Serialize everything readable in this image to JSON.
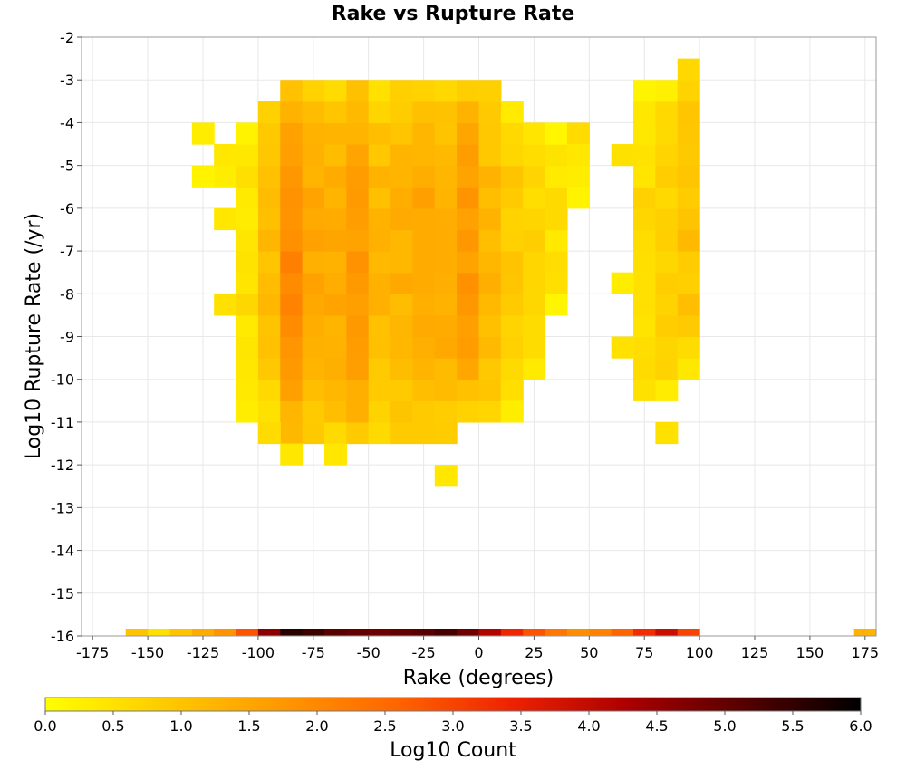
{
  "chart_data": {
    "type": "heatmap",
    "title": "Rake vs Rupture Rate",
    "xlabel": "Rake (degrees)",
    "ylabel": "Log10 Rupture Rate (/yr)",
    "xlim": [
      -180,
      180
    ],
    "ylim": [
      -16,
      -2
    ],
    "xticks": [
      -175,
      -150,
      -125,
      -100,
      -75,
      -50,
      -25,
      0,
      25,
      50,
      75,
      100,
      125,
      150,
      175
    ],
    "yticks": [
      -2,
      -3,
      -4,
      -5,
      -6,
      -7,
      -8,
      -9,
      -10,
      -11,
      -12,
      -13,
      -14,
      -15,
      -16
    ],
    "grid": true,
    "bin_width": 10,
    "bin_height": 0.5,
    "colorbar": {
      "label": "Log10 Count",
      "range": [
        0,
        6
      ],
      "ticks": [
        "0.0",
        "0.5",
        "1.0",
        "1.5",
        "2.0",
        "2.5",
        "3.0",
        "3.5",
        "4.0",
        "4.5",
        "5.0",
        "5.5",
        "6.0"
      ],
      "colors": [
        "#ffff00",
        "#ffcc00",
        "#ff9900",
        "#ff6600",
        "#ee2200",
        "#aa0000",
        "#550000",
        "#000000"
      ]
    },
    "bins": [
      {
        "x": -155,
        "y": -16,
        "v": 1.0
      },
      {
        "x": -145,
        "y": -16,
        "v": 0.5
      },
      {
        "x": -135,
        "y": -16,
        "v": 1.0
      },
      {
        "x": -125,
        "y": -16,
        "v": 1.4
      },
      {
        "x": -115,
        "y": -16,
        "v": 1.8
      },
      {
        "x": -105,
        "y": -16,
        "v": 2.8
      },
      {
        "x": -95,
        "y": -16,
        "v": 4.6
      },
      {
        "x": -85,
        "y": -16,
        "v": 5.6
      },
      {
        "x": -75,
        "y": -16,
        "v": 5.4
      },
      {
        "x": -65,
        "y": -16,
        "v": 5.1
      },
      {
        "x": -55,
        "y": -16,
        "v": 5.0
      },
      {
        "x": -45,
        "y": -16,
        "v": 4.9
      },
      {
        "x": -35,
        "y": -16,
        "v": 5.0
      },
      {
        "x": -25,
        "y": -16,
        "v": 5.1
      },
      {
        "x": -15,
        "y": -16,
        "v": 5.3
      },
      {
        "x": -5,
        "y": -16,
        "v": 4.9
      },
      {
        "x": 5,
        "y": -16,
        "v": 4.2
      },
      {
        "x": 15,
        "y": -16,
        "v": 3.4
      },
      {
        "x": 25,
        "y": -16,
        "v": 2.8
      },
      {
        "x": 35,
        "y": -16,
        "v": 2.3
      },
      {
        "x": 45,
        "y": -16,
        "v": 1.9
      },
      {
        "x": 55,
        "y": -16,
        "v": 2.1
      },
      {
        "x": 65,
        "y": -16,
        "v": 2.6
      },
      {
        "x": 75,
        "y": -16,
        "v": 3.3
      },
      {
        "x": 85,
        "y": -16,
        "v": 3.9
      },
      {
        "x": 95,
        "y": -16,
        "v": 3.0
      },
      {
        "x": 175,
        "y": -16,
        "v": 1.3
      }
    ],
    "regions": [
      {
        "x": [
          -110,
          -100
        ],
        "y": [
          -11,
          -4
        ],
        "base": 0.5
      },
      {
        "x": [
          -100,
          -90
        ],
        "y": [
          -11,
          -3.5
        ],
        "base": 1.1
      },
      {
        "x": [
          -90,
          -80
        ],
        "y": [
          -11.5,
          -3
        ],
        "base": 2.0
      },
      {
        "x": [
          -80,
          -70
        ],
        "y": [
          -11.5,
          -3
        ],
        "base": 1.5
      },
      {
        "x": [
          -70,
          -60
        ],
        "y": [
          -11.5,
          -3
        ],
        "base": 1.4
      },
      {
        "x": [
          -60,
          -50
        ],
        "y": [
          -11.5,
          -3
        ],
        "base": 1.7
      },
      {
        "x": [
          -50,
          -40
        ],
        "y": [
          -11.5,
          -3
        ],
        "base": 1.2
      },
      {
        "x": [
          -40,
          -30
        ],
        "y": [
          -11.5,
          -3
        ],
        "base": 1.3
      },
      {
        "x": [
          -30,
          -20
        ],
        "y": [
          -11.5,
          -3
        ],
        "base": 1.5
      },
      {
        "x": [
          -20,
          -10
        ],
        "y": [
          -11.5,
          -3
        ],
        "base": 1.4
      },
      {
        "x": [
          -10,
          0
        ],
        "y": [
          -11,
          -3
        ],
        "base": 1.7
      },
      {
        "x": [
          0,
          10
        ],
        "y": [
          -11,
          -3
        ],
        "base": 1.2
      },
      {
        "x": [
          10,
          20
        ],
        "y": [
          -10.5,
          -3.5
        ],
        "base": 0.9
      },
      {
        "x": [
          20,
          30
        ],
        "y": [
          -10,
          -4
        ],
        "base": 0.7
      },
      {
        "x": [
          30,
          40
        ],
        "y": [
          -8.5,
          -4
        ],
        "base": 0.5
      },
      {
        "x": [
          70,
          80
        ],
        "y": [
          -10.5,
          -3
        ],
        "base": 0.6
      },
      {
        "x": [
          80,
          90
        ],
        "y": [
          -10.5,
          -3
        ],
        "base": 0.8
      },
      {
        "x": [
          90,
          100
        ],
        "y": [
          -10,
          -2.5
        ],
        "base": 1.0
      }
    ],
    "outliers": [
      {
        "x": -125,
        "y": -4.5,
        "v": 0.3
      },
      {
        "x": -115,
        "y": -5,
        "v": 0.4
      },
      {
        "x": -115,
        "y": -5.5,
        "v": 0.3
      },
      {
        "x": -125,
        "y": -5.5,
        "v": 0.2
      },
      {
        "x": -115,
        "y": -6.5,
        "v": 0.4
      },
      {
        "x": -115,
        "y": -8.5,
        "v": 0.5
      },
      {
        "x": 65,
        "y": -5,
        "v": 0.5
      },
      {
        "x": 65,
        "y": -8,
        "v": 0.3
      },
      {
        "x": 65,
        "y": -9.5,
        "v": 0.5
      },
      {
        "x": -15,
        "y": -12.5,
        "v": 0.4
      },
      {
        "x": -85,
        "y": -12,
        "v": 0.4
      },
      {
        "x": -65,
        "y": -12,
        "v": 0.4
      },
      {
        "x": 85,
        "y": -11.5,
        "v": 0.5
      },
      {
        "x": 45,
        "y": -4.5,
        "v": 0.6
      },
      {
        "x": 45,
        "y": -5,
        "v": 0.4
      },
      {
        "x": 45,
        "y": -5.5,
        "v": 0.3
      },
      {
        "x": 45,
        "y": -6,
        "v": 0.2
      },
      {
        "x": 15,
        "y": -11,
        "v": 0.3
      },
      {
        "x": -95,
        "y": -11.5,
        "v": 0.6
      }
    ]
  }
}
